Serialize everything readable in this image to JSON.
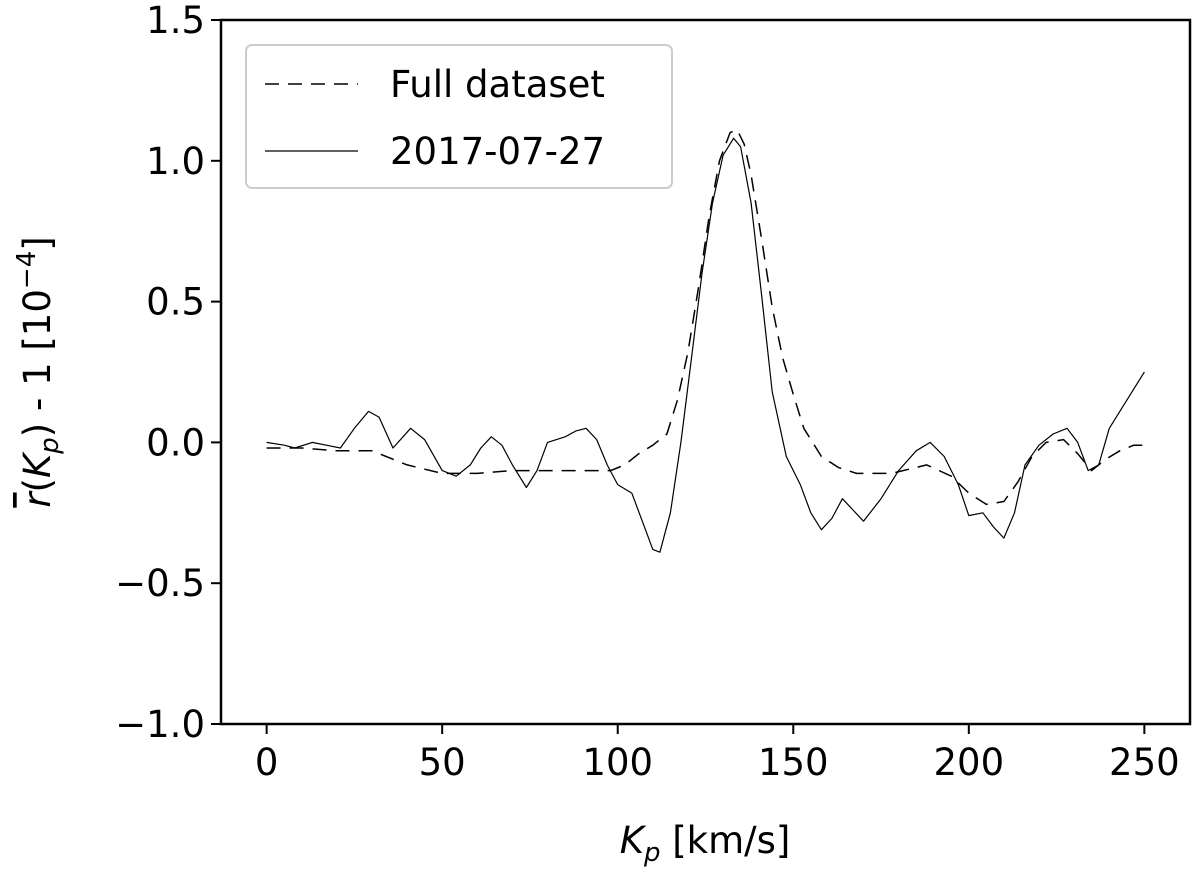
{
  "chart_data": {
    "type": "line",
    "xlabel": {
      "italic": "K",
      "sub": "p",
      "rest": " [km/s]"
    },
    "ylabel": {
      "r": "r",
      "open": "(",
      "K": "K",
      "sub": "p",
      "rest": ") - 1 [10",
      "sup": "−4",
      "close": "]"
    },
    "xlim": [
      -13,
      263
    ],
    "ylim": [
      -1.0,
      1.5
    ],
    "xticks": [
      0,
      50,
      100,
      150,
      200,
      250
    ],
    "xtick_labels": [
      "0",
      "50",
      "100",
      "150",
      "200",
      "250"
    ],
    "yticks": [
      -1.0,
      -0.5,
      0.0,
      0.5,
      1.0,
      1.5
    ],
    "ytick_labels": [
      "−1.0",
      "−0.5",
      "0.0",
      "0.5",
      "1.0",
      "1.5"
    ],
    "grid": false,
    "legend_position": "top-left",
    "series": [
      {
        "name": "Full dataset",
        "style": "dashed",
        "color": "#000000",
        "points": [
          [
            0,
            -0.02
          ],
          [
            10,
            -0.02
          ],
          [
            20,
            -0.03
          ],
          [
            30,
            -0.03
          ],
          [
            40,
            -0.08
          ],
          [
            50,
            -0.11
          ],
          [
            60,
            -0.11
          ],
          [
            70,
            -0.1
          ],
          [
            80,
            -0.1
          ],
          [
            90,
            -0.1
          ],
          [
            98,
            -0.1
          ],
          [
            102,
            -0.08
          ],
          [
            106,
            -0.04
          ],
          [
            110,
            -0.01
          ],
          [
            114,
            0.03
          ],
          [
            117,
            0.15
          ],
          [
            120,
            0.32
          ],
          [
            123,
            0.55
          ],
          [
            126,
            0.8
          ],
          [
            129,
            1.0
          ],
          [
            132,
            1.1
          ],
          [
            134,
            1.11
          ],
          [
            136,
            1.06
          ],
          [
            138,
            0.95
          ],
          [
            141,
            0.72
          ],
          [
            144,
            0.48
          ],
          [
            147,
            0.3
          ],
          [
            150,
            0.17
          ],
          [
            153,
            0.05
          ],
          [
            158,
            -0.05
          ],
          [
            163,
            -0.09
          ],
          [
            168,
            -0.11
          ],
          [
            178,
            -0.11
          ],
          [
            188,
            -0.08
          ],
          [
            195,
            -0.12
          ],
          [
            200,
            -0.18
          ],
          [
            205,
            -0.22
          ],
          [
            210,
            -0.21
          ],
          [
            214,
            -0.14
          ],
          [
            218,
            -0.05
          ],
          [
            222,
            0.0
          ],
          [
            227,
            0.01
          ],
          [
            231,
            -0.04
          ],
          [
            235,
            -0.1
          ],
          [
            239,
            -0.06
          ],
          [
            243,
            -0.03
          ],
          [
            247,
            -0.01
          ],
          [
            250,
            -0.01
          ]
        ]
      },
      {
        "name": "2017-07-27",
        "style": "solid",
        "color": "#000000",
        "points": [
          [
            0,
            0.0
          ],
          [
            5,
            -0.01
          ],
          [
            8,
            -0.02
          ],
          [
            13,
            0.0
          ],
          [
            17,
            -0.01
          ],
          [
            21,
            -0.02
          ],
          [
            25,
            0.05
          ],
          [
            29,
            0.11
          ],
          [
            32,
            0.09
          ],
          [
            36,
            -0.02
          ],
          [
            41,
            0.05
          ],
          [
            45,
            0.01
          ],
          [
            50,
            -0.1
          ],
          [
            54,
            -0.12
          ],
          [
            58,
            -0.08
          ],
          [
            61,
            -0.02
          ],
          [
            64,
            0.02
          ],
          [
            67,
            -0.01
          ],
          [
            70,
            -0.08
          ],
          [
            74,
            -0.16
          ],
          [
            77,
            -0.1
          ],
          [
            80,
            0.0
          ],
          [
            85,
            0.02
          ],
          [
            88,
            0.04
          ],
          [
            91,
            0.05
          ],
          [
            94,
            0.01
          ],
          [
            97,
            -0.08
          ],
          [
            100,
            -0.15
          ],
          [
            104,
            -0.18
          ],
          [
            107,
            -0.28
          ],
          [
            110,
            -0.38
          ],
          [
            112,
            -0.39
          ],
          [
            115,
            -0.25
          ],
          [
            118,
            0.0
          ],
          [
            121,
            0.3
          ],
          [
            124,
            0.6
          ],
          [
            127,
            0.85
          ],
          [
            130,
            1.02
          ],
          [
            133,
            1.08
          ],
          [
            135,
            1.05
          ],
          [
            138,
            0.85
          ],
          [
            141,
            0.52
          ],
          [
            144,
            0.18
          ],
          [
            148,
            -0.05
          ],
          [
            152,
            -0.15
          ],
          [
            155,
            -0.25
          ],
          [
            158,
            -0.31
          ],
          [
            161,
            -0.27
          ],
          [
            164,
            -0.2
          ],
          [
            167,
            -0.24
          ],
          [
            170,
            -0.28
          ],
          [
            175,
            -0.2
          ],
          [
            180,
            -0.1
          ],
          [
            185,
            -0.03
          ],
          [
            189,
            0.0
          ],
          [
            193,
            -0.05
          ],
          [
            197,
            -0.15
          ],
          [
            200,
            -0.26
          ],
          [
            204,
            -0.25
          ],
          [
            207,
            -0.3
          ],
          [
            210,
            -0.34
          ],
          [
            213,
            -0.25
          ],
          [
            216,
            -0.08
          ],
          [
            220,
            -0.01
          ],
          [
            224,
            0.03
          ],
          [
            228,
            0.05
          ],
          [
            231,
            0.0
          ],
          [
            234,
            -0.1
          ],
          [
            237,
            -0.08
          ],
          [
            240,
            0.05
          ],
          [
            245,
            0.15
          ],
          [
            250,
            0.25
          ]
        ]
      }
    ]
  }
}
